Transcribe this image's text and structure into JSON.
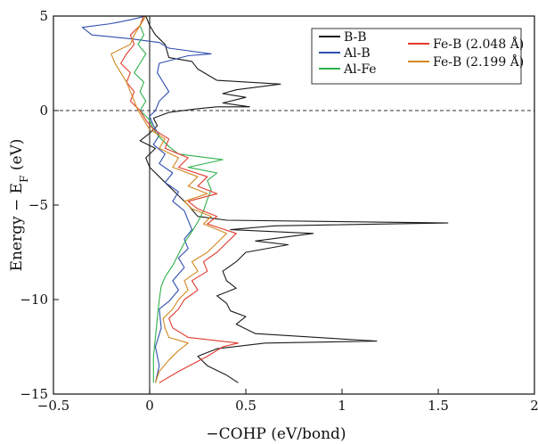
{
  "chart_data": {
    "type": "line",
    "xlabel": "−COHP (eV/bond)",
    "ylabel_main": "Energy − E",
    "ylabel_sub": "F",
    "ylabel_unit": " (eV)",
    "xlim": [
      -0.5,
      2
    ],
    "ylim": [
      -15,
      5
    ],
    "xticks": [
      -0.5,
      0,
      0.5,
      1,
      1.5,
      2
    ],
    "xtick_labels": [
      "−0.5",
      "0",
      "0.5",
      "1",
      "1.5",
      "2"
    ],
    "yticks": [
      5,
      0,
      -5,
      -10,
      -15
    ],
    "ytick_labels": [
      "5",
      "0",
      "−5",
      "−10",
      "−15"
    ],
    "reference_lines": [
      {
        "axis": "y",
        "value": 0,
        "style": "dashed"
      },
      {
        "axis": "x",
        "value": 0,
        "style": "solid"
      }
    ],
    "legend_position": "top-right",
    "series": [
      {
        "name": "B-B",
        "color": "#1a1a1a",
        "points": [
          [
            0.46,
            -14.4
          ],
          [
            0.4,
            -14.0
          ],
          [
            0.3,
            -13.5
          ],
          [
            0.25,
            -13.0
          ],
          [
            0.35,
            -12.6
          ],
          [
            0.6,
            -12.3
          ],
          [
            1.18,
            -12.2
          ],
          [
            0.55,
            -11.8
          ],
          [
            0.45,
            -11.3
          ],
          [
            0.5,
            -10.9
          ],
          [
            0.42,
            -10.6
          ],
          [
            0.4,
            -10.2
          ],
          [
            0.35,
            -9.8
          ],
          [
            0.45,
            -9.4
          ],
          [
            0.4,
            -9.0
          ],
          [
            0.38,
            -8.5
          ],
          [
            0.45,
            -8.0
          ],
          [
            0.5,
            -7.5
          ],
          [
            0.72,
            -7.1
          ],
          [
            0.55,
            -6.9
          ],
          [
            0.85,
            -6.5
          ],
          [
            0.42,
            -6.3
          ],
          [
            0.65,
            -6.1
          ],
          [
            1.55,
            -5.95
          ],
          [
            0.4,
            -5.8
          ],
          [
            0.25,
            -5.6
          ],
          [
            0.2,
            -5.0
          ],
          [
            0.15,
            -4.5
          ],
          [
            0.1,
            -4.0
          ],
          [
            0.05,
            -3.5
          ],
          [
            0.0,
            -3.0
          ],
          [
            -0.02,
            -2.5
          ],
          [
            0.03,
            -2.0
          ],
          [
            -0.05,
            -1.6
          ],
          [
            0.0,
            -1.2
          ],
          [
            0.04,
            -0.8
          ],
          [
            0.02,
            -0.4
          ],
          [
            0.1,
            -0.1
          ],
          [
            0.25,
            0.1
          ],
          [
            0.35,
            0.2
          ],
          [
            0.52,
            0.2
          ],
          [
            0.38,
            0.4
          ],
          [
            0.5,
            0.7
          ],
          [
            0.38,
            0.9
          ],
          [
            0.45,
            1.1
          ],
          [
            0.68,
            1.4
          ],
          [
            0.35,
            1.6
          ],
          [
            0.25,
            2.2
          ],
          [
            0.22,
            2.6
          ],
          [
            0.1,
            2.8
          ],
          [
            0.08,
            3.5
          ],
          [
            0.03,
            4.0
          ],
          [
            0.0,
            4.5
          ],
          [
            -0.02,
            5.0
          ]
        ]
      },
      {
        "name": "Al-B",
        "color": "#2f4fb0",
        "points": [
          [
            0.03,
            -14.4
          ],
          [
            0.05,
            -13.5
          ],
          [
            0.03,
            -12.5
          ],
          [
            0.06,
            -11.5
          ],
          [
            0.05,
            -10.5
          ],
          [
            0.1,
            -10.1
          ],
          [
            0.15,
            -9.5
          ],
          [
            0.12,
            -9.0
          ],
          [
            0.18,
            -8.3
          ],
          [
            0.15,
            -7.8
          ],
          [
            0.2,
            -7.3
          ],
          [
            0.18,
            -6.8
          ],
          [
            0.22,
            -6.3
          ],
          [
            0.2,
            -5.8
          ],
          [
            0.18,
            -5.3
          ],
          [
            0.12,
            -4.8
          ],
          [
            0.15,
            -4.3
          ],
          [
            0.08,
            -3.8
          ],
          [
            0.12,
            -3.3
          ],
          [
            0.05,
            -2.8
          ],
          [
            0.08,
            -2.3
          ],
          [
            0.02,
            -1.8
          ],
          [
            0.05,
            -1.3
          ],
          [
            0.02,
            -0.8
          ],
          [
            0.0,
            -0.3
          ],
          [
            0.03,
            0.0
          ],
          [
            0.05,
            0.5
          ],
          [
            0.1,
            1.0
          ],
          [
            0.07,
            1.5
          ],
          [
            0.04,
            2.0
          ],
          [
            0.05,
            2.5
          ],
          [
            0.2,
            2.9
          ],
          [
            0.32,
            3.0
          ],
          [
            0.1,
            3.3
          ],
          [
            0.05,
            3.6
          ],
          [
            -0.1,
            3.8
          ],
          [
            -0.3,
            4.0
          ],
          [
            -0.35,
            4.4
          ],
          [
            -0.2,
            4.6
          ],
          [
            -0.1,
            4.8
          ],
          [
            -0.02,
            5.0
          ]
        ]
      },
      {
        "name": "Al-Fe",
        "color": "#2fb04a",
        "points": [
          [
            0.02,
            -14.4
          ],
          [
            0.02,
            -13.0
          ],
          [
            0.03,
            -12.0
          ],
          [
            0.04,
            -11.0
          ],
          [
            0.05,
            -10.0
          ],
          [
            0.06,
            -9.3
          ],
          [
            0.08,
            -8.8
          ],
          [
            0.12,
            -8.2
          ],
          [
            0.15,
            -7.6
          ],
          [
            0.18,
            -7.0
          ],
          [
            0.22,
            -6.4
          ],
          [
            0.25,
            -5.9
          ],
          [
            0.28,
            -5.3
          ],
          [
            0.3,
            -4.7
          ],
          [
            0.32,
            -4.2
          ],
          [
            0.3,
            -3.7
          ],
          [
            0.35,
            -3.3
          ],
          [
            0.2,
            -3.0
          ],
          [
            0.38,
            -2.6
          ],
          [
            0.15,
            -2.3
          ],
          [
            0.1,
            -1.9
          ],
          [
            0.05,
            -1.4
          ],
          [
            0.02,
            -1.0
          ],
          [
            0.0,
            -0.5
          ],
          [
            -0.05,
            0.0
          ],
          [
            -0.02,
            0.5
          ],
          [
            -0.05,
            1.0
          ],
          [
            -0.03,
            1.5
          ],
          [
            -0.08,
            2.0
          ],
          [
            -0.05,
            2.5
          ],
          [
            -0.02,
            3.0
          ],
          [
            -0.06,
            3.5
          ],
          [
            -0.03,
            4.0
          ],
          [
            -0.05,
            4.5
          ],
          [
            -0.03,
            5.0
          ]
        ]
      },
      {
        "name": "Fe-B (2.048 Å)",
        "color": "#e23a2e",
        "points": [
          [
            0.05,
            -14.4
          ],
          [
            0.15,
            -13.8
          ],
          [
            0.3,
            -13.0
          ],
          [
            0.38,
            -12.5
          ],
          [
            0.46,
            -12.3
          ],
          [
            0.2,
            -12.0
          ],
          [
            0.12,
            -11.5
          ],
          [
            0.1,
            -11.0
          ],
          [
            0.15,
            -10.5
          ],
          [
            0.18,
            -10.0
          ],
          [
            0.25,
            -9.5
          ],
          [
            0.22,
            -9.0
          ],
          [
            0.3,
            -8.5
          ],
          [
            0.28,
            -8.0
          ],
          [
            0.35,
            -7.5
          ],
          [
            0.4,
            -7.0
          ],
          [
            0.45,
            -6.5
          ],
          [
            0.3,
            -6.0
          ],
          [
            0.35,
            -5.6
          ],
          [
            0.25,
            -5.2
          ],
          [
            0.2,
            -4.8
          ],
          [
            0.35,
            -4.4
          ],
          [
            0.25,
            -4.0
          ],
          [
            0.3,
            -3.5
          ],
          [
            0.15,
            -3.0
          ],
          [
            0.2,
            -2.5
          ],
          [
            0.08,
            -2.0
          ],
          [
            0.1,
            -1.5
          ],
          [
            0.02,
            -1.0
          ],
          [
            -0.02,
            -0.5
          ],
          [
            -0.05,
            0.0
          ],
          [
            -0.1,
            0.5
          ],
          [
            -0.08,
            1.0
          ],
          [
            -0.12,
            1.5
          ],
          [
            -0.1,
            2.0
          ],
          [
            -0.15,
            2.5
          ],
          [
            -0.12,
            3.0
          ],
          [
            -0.08,
            3.5
          ],
          [
            -0.1,
            4.0
          ],
          [
            -0.05,
            4.5
          ],
          [
            -0.03,
            5.0
          ]
        ]
      },
      {
        "name": "Fe-B (2.199 Å)",
        "color": "#d2881e",
        "points": [
          [
            0.03,
            -14.4
          ],
          [
            0.05,
            -13.8
          ],
          [
            0.1,
            -13.2
          ],
          [
            0.15,
            -12.7
          ],
          [
            0.2,
            -12.3
          ],
          [
            0.1,
            -12.0
          ],
          [
            0.08,
            -11.5
          ],
          [
            0.07,
            -11.0
          ],
          [
            0.12,
            -10.5
          ],
          [
            0.15,
            -10.0
          ],
          [
            0.2,
            -9.5
          ],
          [
            0.18,
            -9.0
          ],
          [
            0.25,
            -8.5
          ],
          [
            0.22,
            -8.0
          ],
          [
            0.3,
            -7.5
          ],
          [
            0.35,
            -7.0
          ],
          [
            0.4,
            -6.5
          ],
          [
            0.28,
            -6.0
          ],
          [
            0.32,
            -5.6
          ],
          [
            0.22,
            -5.2
          ],
          [
            0.18,
            -4.8
          ],
          [
            0.3,
            -4.4
          ],
          [
            0.2,
            -4.0
          ],
          [
            0.25,
            -3.5
          ],
          [
            0.12,
            -3.0
          ],
          [
            0.15,
            -2.5
          ],
          [
            0.05,
            -2.0
          ],
          [
            0.08,
            -1.5
          ],
          [
            0.0,
            -1.0
          ],
          [
            -0.03,
            -0.5
          ],
          [
            -0.06,
            0.0
          ],
          [
            -0.08,
            0.5
          ],
          [
            -0.1,
            1.0
          ],
          [
            -0.12,
            1.5
          ],
          [
            -0.15,
            2.0
          ],
          [
            -0.18,
            2.5
          ],
          [
            -0.2,
            3.0
          ],
          [
            -0.1,
            3.5
          ],
          [
            -0.08,
            4.0
          ],
          [
            -0.05,
            4.5
          ],
          [
            -0.02,
            5.0
          ]
        ]
      }
    ]
  }
}
